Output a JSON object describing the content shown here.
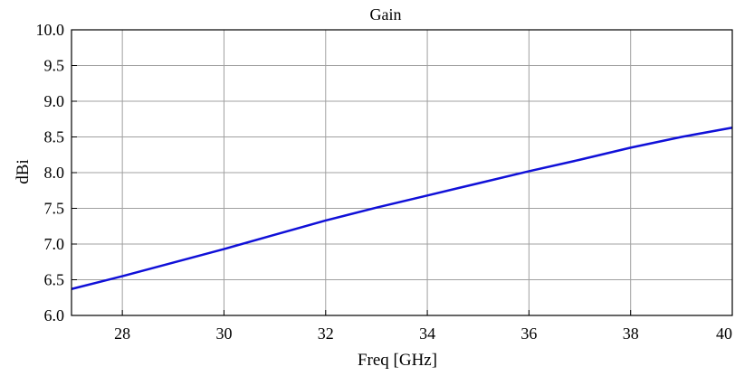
{
  "chart_data": {
    "type": "line",
    "title": "Gain",
    "xlabel": "Freq [GHz]",
    "ylabel": "dBi",
    "xlim": [
      27,
      40
    ],
    "ylim": [
      6.0,
      10.0
    ],
    "xticks": [
      28,
      30,
      32,
      34,
      36,
      38,
      40
    ],
    "yticks": [
      "6.0",
      "6.5",
      "7.0",
      "7.5",
      "8.0",
      "8.5",
      "9.0",
      "9.5",
      "10.0"
    ],
    "grid": true,
    "series": [
      {
        "color": "#1010d8",
        "x": [
          27,
          28,
          29,
          30,
          31,
          32,
          33,
          34,
          35,
          36,
          37,
          38,
          39,
          40
        ],
        "y": [
          6.37,
          6.55,
          6.74,
          6.93,
          7.13,
          7.33,
          7.51,
          7.68,
          7.85,
          8.02,
          8.18,
          8.35,
          8.5,
          8.63
        ]
      }
    ]
  }
}
